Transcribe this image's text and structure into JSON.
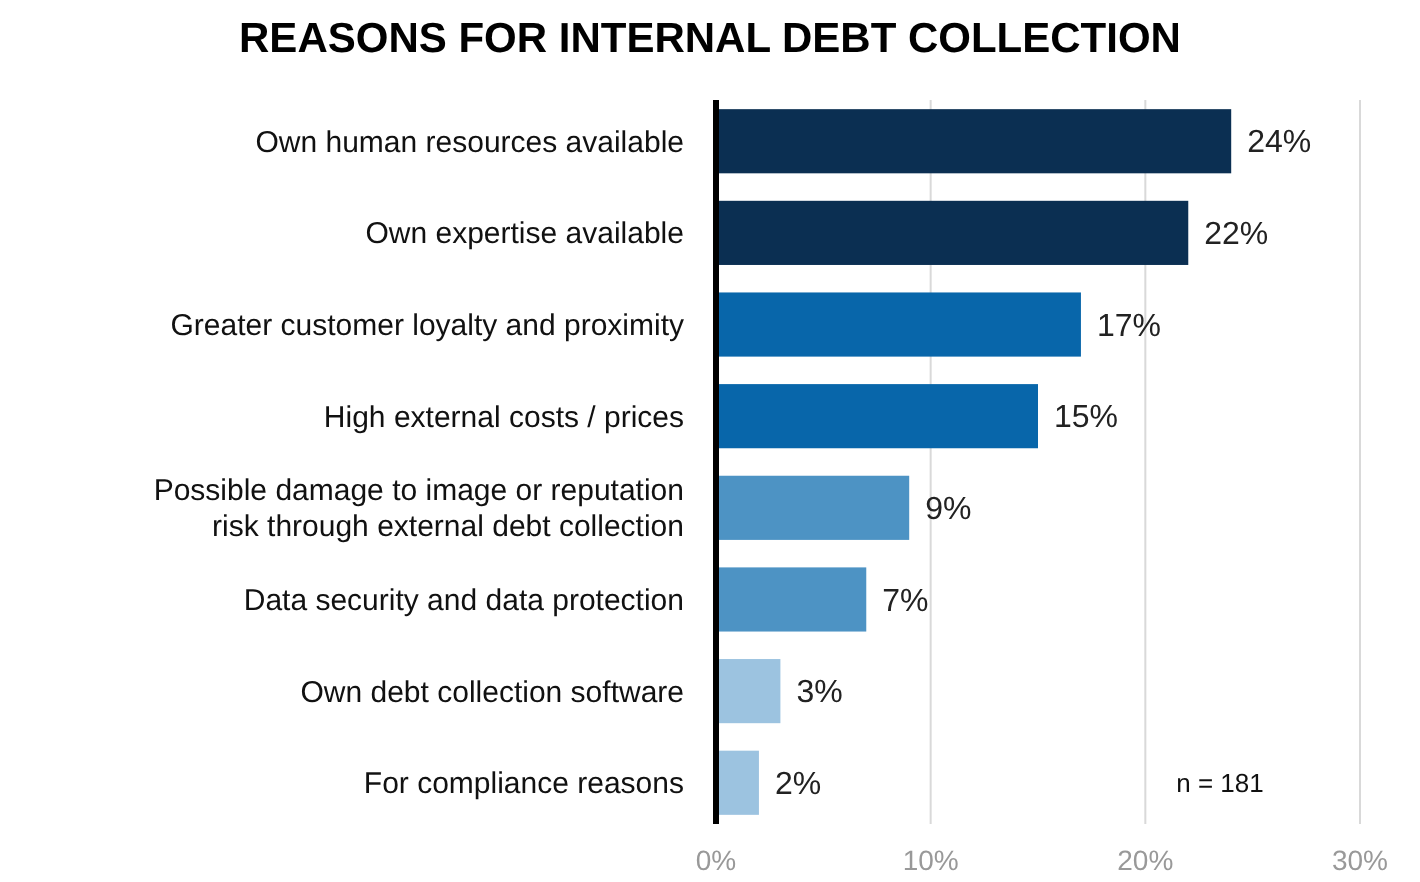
{
  "chart_data": {
    "type": "bar",
    "orientation": "horizontal",
    "title": "REASONS FOR INTERNAL DEBT COLLECTION",
    "categories": [
      "Own human resources available",
      "Own expertise available",
      "Greater customer loyalty and proximity",
      "High external costs / prices",
      "Possible damage to image or reputation risk through external debt collection",
      "Data security and data protection",
      "Own debt collection software",
      "For compliance reasons"
    ],
    "values": [
      24,
      22,
      17,
      15,
      9,
      7,
      3,
      2
    ],
    "colors": [
      "#0b2f52",
      "#0b2f52",
      "#0866aa",
      "#0866aa",
      "#4d93c4",
      "#4d93c4",
      "#9cc3e0",
      "#9cc3e0"
    ],
    "value_labels": [
      "24%",
      "22%",
      "17%",
      "15%",
      "9%",
      "7%",
      "3%",
      "2%"
    ],
    "xlim": [
      0,
      30
    ],
    "xticks": [
      {
        "value": 0,
        "label": "0%"
      },
      {
        "value": 10,
        "label": "10%"
      },
      {
        "value": 20,
        "label": "20%"
      },
      {
        "value": 30,
        "label": "30%"
      }
    ],
    "grid": "x",
    "annotations": [
      "n = 181"
    ]
  }
}
